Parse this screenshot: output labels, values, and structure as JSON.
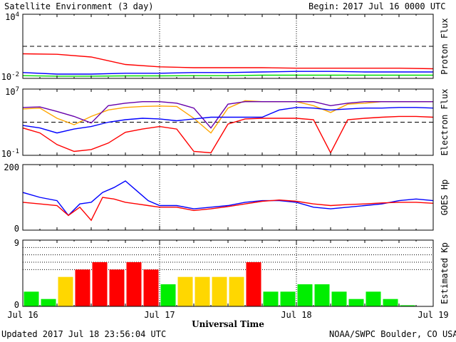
{
  "title": "Satellite Environment (3 day)",
  "begin_label": "Begin:",
  "begin_value": "2017 Jul 16 0000 UTC",
  "updated": "Updated 2017 Jul 18 23:56:04 UTC",
  "credit": "NOAA/SWPC Boulder, CO USA",
  "chart_data": [
    {
      "type": "line",
      "panel": "proton",
      "ylabel": "Proton Flux",
      "scale": "log",
      "ylim": [
        0.01,
        10000
      ],
      "ytick_labels": [
        {
          "base": "10",
          "exp": "4",
          "value": 10000
        },
        {
          "base": "10",
          "exp": "-2",
          "value": 0.01
        }
      ],
      "threshold": 10,
      "x": [
        0,
        6,
        12,
        18,
        24,
        30,
        36,
        42,
        48,
        54,
        60,
        66,
        72
      ],
      "series": [
        {
          "color": "#ff0000",
          "values": [
            2.0,
            1.8,
            1.0,
            0.2,
            0.12,
            0.1,
            0.1,
            0.1,
            0.09,
            0.09,
            0.09,
            0.09,
            0.08
          ]
        },
        {
          "color": "#0000ff",
          "values": [
            0.035,
            0.025,
            0.025,
            0.03,
            0.03,
            0.035,
            0.035,
            0.04,
            0.045,
            0.045,
            0.04,
            0.04,
            0.04
          ]
        },
        {
          "color": "#00dd00",
          "values": [
            0.018,
            0.016,
            0.016,
            0.017,
            0.017,
            0.018,
            0.018,
            0.02,
            0.02,
            0.02,
            0.02,
            0.02,
            0.02
          ]
        }
      ]
    },
    {
      "type": "line",
      "panel": "electron",
      "ylabel": "Electron Flux",
      "scale": "log",
      "ylim": [
        0.1,
        10000000
      ],
      "ytick_labels": [
        {
          "base": "10",
          "exp": "7",
          "value": 10000000
        },
        {
          "base": "10",
          "exp": "-1",
          "value": 0.1
        }
      ],
      "threshold": 1000,
      "x": [
        0,
        3,
        6,
        9,
        12,
        15,
        18,
        21,
        24,
        27,
        30,
        33,
        36,
        39,
        42,
        45,
        48,
        51,
        54,
        57,
        60,
        63,
        66,
        69,
        72
      ],
      "series": [
        {
          "color": "#ffa500",
          "values": [
            40000,
            50000,
            3000,
            500,
            5000,
            30000,
            60000,
            80000,
            90000,
            80000,
            3000,
            50,
            50000,
            400000,
            300000,
            300000,
            300000,
            100000,
            15000,
            150000,
            200000,
            300000,
            300000,
            300000,
            300000
          ]
        },
        {
          "color": "#6600aa",
          "values": [
            60000,
            70000,
            20000,
            5000,
            800,
            100000,
            200000,
            300000,
            300000,
            200000,
            50000,
            200,
            150000,
            300000,
            300000,
            300000,
            300000,
            300000,
            100000,
            200000,
            300000,
            300000,
            300000,
            300000,
            300000
          ]
        },
        {
          "color": "#0000ff",
          "values": [
            400,
            200,
            50,
            150,
            300,
            1000,
            2000,
            3000,
            2500,
            1500,
            2500,
            4000,
            4000,
            4000,
            4000,
            30000,
            60000,
            50000,
            30000,
            40000,
            50000,
            50000,
            60000,
            60000,
            50000
          ]
        },
        {
          "color": "#ff0000",
          "values": [
            200,
            50,
            2,
            0.3,
            0.5,
            3,
            60,
            150,
            300,
            150,
            0.3,
            0.2,
            600,
            2500,
            3000,
            3000,
            3000,
            2000,
            0.2,
            2000,
            3000,
            4000,
            5000,
            5000,
            4000
          ]
        }
      ]
    },
    {
      "type": "line",
      "panel": "goes_hp",
      "ylabel": "GOES Hp",
      "scale": "linear",
      "ylim": [
        0,
        200
      ],
      "ytick_labels": [
        {
          "base": "200",
          "exp": "",
          "value": 200
        },
        {
          "base": "0",
          "exp": "",
          "value": 0
        }
      ],
      "x": [
        0,
        3,
        6,
        8,
        10,
        12,
        14,
        16,
        18,
        20,
        22,
        24,
        27,
        30,
        33,
        36,
        39,
        42,
        45,
        48,
        51,
        54,
        57,
        60,
        63,
        66,
        69,
        72
      ],
      "series": [
        {
          "color": "#0000ff",
          "values": [
            115,
            100,
            90,
            45,
            80,
            85,
            115,
            130,
            150,
            120,
            90,
            75,
            75,
            65,
            70,
            75,
            85,
            90,
            90,
            85,
            70,
            65,
            70,
            75,
            80,
            90,
            95,
            90
          ]
        },
        {
          "color": "#ff0000",
          "values": [
            85,
            80,
            75,
            45,
            70,
            30,
            100,
            95,
            85,
            80,
            75,
            70,
            70,
            60,
            65,
            72,
            80,
            88,
            92,
            88,
            80,
            75,
            78,
            80,
            83,
            85,
            85,
            82
          ]
        }
      ]
    },
    {
      "type": "bar",
      "panel": "kp",
      "ylabel": "Estimated Kp",
      "ylim": [
        0,
        9
      ],
      "ytick_labels": [
        {
          "base": "9",
          "exp": "",
          "value": 9
        },
        {
          "base": "0",
          "exp": "",
          "value": 0
        }
      ],
      "bar_hours": 3,
      "values": [
        2,
        1,
        4,
        5,
        6,
        5,
        6,
        5,
        3,
        4,
        4,
        4,
        4,
        6,
        2,
        2,
        3,
        3,
        2,
        1,
        2,
        1,
        0.15,
        0
      ],
      "colors": {
        "quiet": "#00ee00",
        "unsettled": "#ffd700",
        "storm": "#ff0000"
      }
    }
  ],
  "x_axis": {
    "xlim": [
      0,
      72
    ],
    "xlabel": "Universal Time",
    "ticks": [
      {
        "hour": 0,
        "label": "Jul 16"
      },
      {
        "hour": 24,
        "label": "Jul 17"
      },
      {
        "hour": 48,
        "label": "Jul 18"
      },
      {
        "hour": 72,
        "label": "Jul 19"
      }
    ]
  }
}
